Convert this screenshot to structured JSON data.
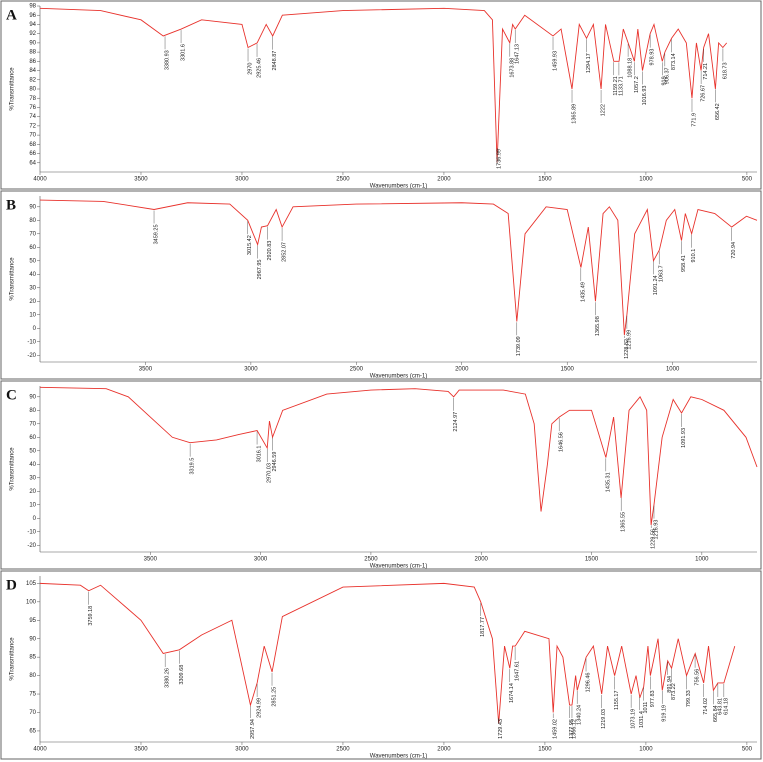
{
  "chart_data": [
    {
      "type": "line",
      "panel": "A",
      "x_label": "Wavenumbers (cm-1)",
      "y_label": "%Transmittance",
      "xlim": [
        4000,
        450
      ],
      "ylim": [
        62,
        98
      ],
      "xticks": [
        4000,
        3500,
        3000,
        2500,
        2000,
        1500,
        1000,
        500
      ],
      "yticks": [
        64,
        66,
        68,
        70,
        72,
        74,
        76,
        78,
        80,
        82,
        84,
        86,
        88,
        90,
        92,
        94,
        96,
        98
      ],
      "x": [
        4000,
        3700,
        3500,
        3390,
        3301,
        3200,
        3000,
        2970,
        2925,
        2880,
        2848,
        2800,
        2500,
        2000,
        1800,
        1760,
        1737,
        1710,
        1674,
        1660,
        1647,
        1600,
        1460,
        1420,
        1366,
        1330,
        1294,
        1260,
        1222,
        1200,
        1159,
        1133,
        1112,
        1088,
        1057,
        1040,
        1017,
        979,
        960,
        919,
        906,
        873,
        840,
        800,
        772,
        750,
        727,
        714,
        690,
        656,
        640,
        619,
        600
      ],
      "series": [
        {
          "color": "#e8322c",
          "values": [
            97.5,
            97,
            95,
            91.5,
            93,
            95,
            94,
            89,
            90,
            94,
            91.5,
            96,
            97,
            97.5,
            97,
            95,
            64,
            93,
            90,
            94,
            93,
            96,
            91.5,
            93,
            80,
            94,
            91,
            94,
            80,
            94,
            86,
            86,
            93,
            90,
            86,
            93,
            84,
            92,
            94,
            86,
            88,
            91,
            93,
            90,
            78,
            90,
            84,
            89,
            92,
            80,
            90,
            89,
            90
          ]
        }
      ],
      "annotations": [
        3380.93,
        3301.6,
        2970.0,
        2925.46,
        2848.87,
        1736.99,
        1673.88,
        1647.13,
        1459.93,
        1365.89,
        1294.17,
        1222.0,
        1159.21,
        1133.71,
        1088.18,
        1057.2,
        1016.93,
        978.93,
        919.0,
        906.37,
        873.14,
        771.9,
        726.67,
        714.21,
        656.42,
        618.73
      ]
    },
    {
      "type": "line",
      "panel": "B",
      "x_label": "Wavenumbers (cm-1)",
      "y_label": "%Transmittance",
      "xlim": [
        4000,
        600
      ],
      "ylim": [
        -25,
        98
      ],
      "xticks": [
        3500,
        3000,
        2500,
        2000,
        1500,
        1000
      ],
      "yticks": [
        -20,
        -10,
        0,
        10,
        20,
        30,
        40,
        50,
        60,
        70,
        80,
        90
      ],
      "x": [
        4000,
        3700,
        3459,
        3300,
        3100,
        3015,
        2968,
        2950,
        2921,
        2880,
        2852,
        2800,
        2500,
        2000,
        1850,
        1780,
        1739,
        1700,
        1600,
        1500,
        1435,
        1400,
        1366,
        1330,
        1300,
        1260,
        1229,
        1217,
        1180,
        1120,
        1091,
        1063,
        1030,
        990,
        958,
        940,
        910,
        880,
        800,
        720,
        650,
        600
      ],
      "series": [
        {
          "color": "#e8322c",
          "values": [
            95,
            94,
            88,
            93,
            92,
            80,
            62,
            75,
            76,
            88,
            75,
            90,
            92,
            93,
            92,
            85,
            5,
            70,
            90,
            88,
            45,
            75,
            20,
            85,
            90,
            80,
            -5,
            10,
            70,
            88,
            50,
            58,
            80,
            88,
            65,
            85,
            70,
            88,
            85,
            75,
            83,
            80
          ]
        }
      ],
      "annotations": [
        3459.25,
        3015.42,
        2967.95,
        2920.83,
        2852.07,
        1739.09,
        1435.49,
        1365.98,
        1228.82,
        1216.99,
        1091.24,
        1063.7,
        958.41,
        910.1,
        720.94
      ]
    },
    {
      "type": "line",
      "panel": "C",
      "x_label": "Wavenumbers (cm-1)",
      "y_label": "%Transmittance",
      "xlim": [
        4000,
        750
      ],
      "ylim": [
        -25,
        98
      ],
      "xticks": [
        3500,
        3000,
        2500,
        2000,
        1500,
        1000
      ],
      "yticks": [
        -20,
        -10,
        0,
        10,
        20,
        30,
        40,
        50,
        60,
        70,
        80,
        90
      ],
      "x": [
        4000,
        3700,
        3600,
        3500,
        3400,
        3320,
        3200,
        3100,
        3016,
        2970,
        2960,
        2946,
        2900,
        2700,
        2500,
        2300,
        2150,
        2125,
        2100,
        1900,
        1800,
        1760,
        1729,
        1700,
        1680,
        1646,
        1600,
        1500,
        1435,
        1400,
        1366,
        1330,
        1280,
        1250,
        1230,
        1217,
        1180,
        1130,
        1092,
        1050,
        1000,
        900,
        800,
        750
      ],
      "series": [
        {
          "color": "#e8322c",
          "values": [
            97,
            96,
            90,
            75,
            60,
            56,
            58,
            62,
            65,
            52,
            72,
            60,
            80,
            92,
            95,
            96,
            94,
            90,
            95,
            95,
            92,
            70,
            5,
            40,
            70,
            75,
            80,
            80,
            45,
            75,
            15,
            80,
            90,
            80,
            -5,
            10,
            60,
            88,
            78,
            90,
            88,
            80,
            60,
            38
          ]
        }
      ],
      "annotations": [
        3319.5,
        3016.1,
        2970.03,
        2946.59,
        2124.97,
        1646.56,
        1435.31,
        1365.55,
        1229.56,
        1216.93,
        1091.93
      ]
    },
    {
      "type": "line",
      "panel": "D",
      "x_label": "Wavenumbers (cm-1)",
      "y_label": "%Transmittance",
      "xlim": [
        4000,
        450
      ],
      "ylim": [
        62,
        107
      ],
      "xticks": [
        4000,
        3500,
        3000,
        2500,
        2000,
        1500,
        1000,
        500
      ],
      "yticks": [
        65,
        70,
        75,
        80,
        85,
        90,
        95,
        100,
        105
      ],
      "x": [
        4000,
        3800,
        3759,
        3700,
        3500,
        3390,
        3310,
        3200,
        3050,
        2958,
        2925,
        2890,
        2851,
        2800,
        2500,
        2000,
        1850,
        1818,
        1760,
        1729,
        1700,
        1674,
        1660,
        1647,
        1600,
        1480,
        1459,
        1440,
        1411,
        1378,
        1366,
        1348,
        1340,
        1296,
        1260,
        1219,
        1190,
        1155,
        1120,
        1073,
        1049,
        1030,
        1011,
        990,
        978,
        940,
        919,
        892,
        873,
        840,
        799,
        756,
        714,
        690,
        666,
        644,
        614,
        560
      ],
      "series": [
        {
          "color": "#e8322c",
          "values": [
            105,
            104.5,
            103,
            104.5,
            95,
            86,
            87,
            91,
            95,
            72,
            78,
            88,
            81,
            96,
            104,
            105,
            104,
            100,
            90,
            67,
            88,
            82,
            88,
            88,
            92,
            90,
            70,
            88,
            85,
            72,
            72,
            80,
            76,
            85,
            88,
            75,
            88,
            80,
            88,
            75,
            80,
            74,
            77,
            88,
            80,
            90,
            76,
            84,
            82,
            90,
            80,
            86,
            78,
            88,
            76,
            78,
            78,
            88
          ]
        }
      ],
      "annotations": [
        3759.18,
        3380.26,
        3309.68,
        2957.94,
        2924.99,
        2851.25,
        1817.77,
        1729.43,
        1674.14,
        1647.61,
        1459.02,
        1377.95,
        1366.12,
        1340.24,
        1296.46,
        1219.03,
        1155.17,
        1073.19,
        1031.4,
        1011.0,
        977.83,
        919.19,
        891.94,
        873.22,
        799.33,
        756.56,
        714.02,
        665.84,
        643.81,
        614.18
      ]
    }
  ]
}
